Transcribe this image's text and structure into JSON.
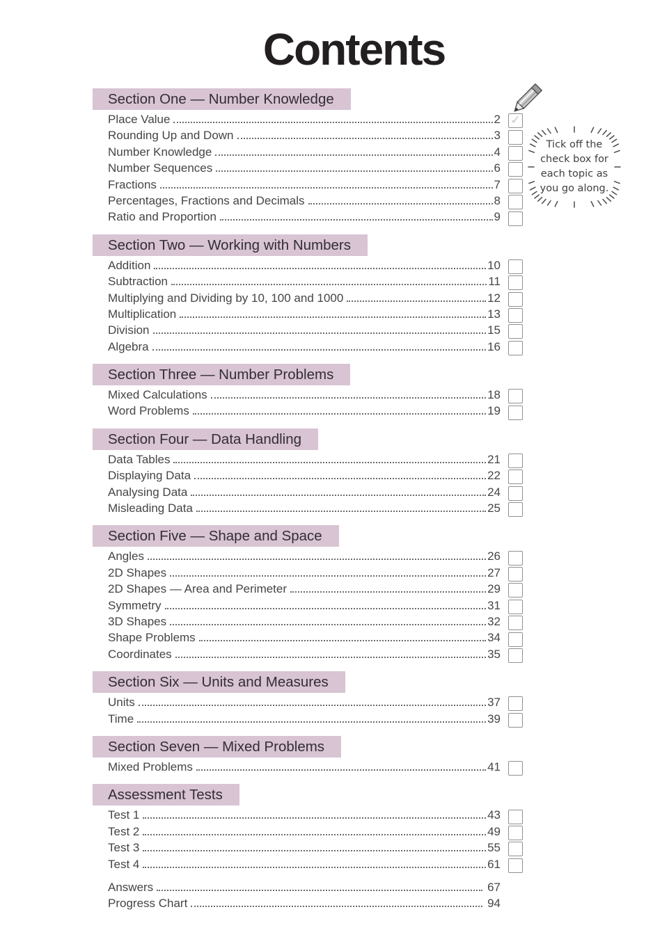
{
  "title": "Contents",
  "note": {
    "text": "Tick off the\ncheck box for\neach topic as\nyou go along."
  },
  "icons": {
    "pencil": "pencil-icon",
    "checkmark_glyph": "✓",
    "scribble_border": "scribble-burst-border-icon"
  },
  "colors": {
    "section_header_bg": "#d8c4d2",
    "section_header_text": "#332d36",
    "body_text": "#454545",
    "title_text": "#231f20",
    "checkbox_border": "#909090",
    "tick": "#c6c6c6"
  },
  "sections": [
    {
      "heading": "Section One — Number Knowledge",
      "items": [
        {
          "label": "Place Value",
          "page": "2",
          "checked": true
        },
        {
          "label": "Rounding Up and Down",
          "page": "3",
          "checked": false
        },
        {
          "label": "Number Knowledge",
          "page": "4",
          "checked": false
        },
        {
          "label": "Number Sequences",
          "page": "6",
          "checked": false
        },
        {
          "label": "Fractions",
          "page": "7",
          "checked": false
        },
        {
          "label": "Percentages, Fractions and Decimals",
          "page": "8",
          "checked": false
        },
        {
          "label": "Ratio and Proportion",
          "page": "9",
          "checked": false
        }
      ]
    },
    {
      "heading": "Section Two — Working with Numbers",
      "items": [
        {
          "label": "Addition",
          "page": "10",
          "checked": false
        },
        {
          "label": "Subtraction",
          "page": "11",
          "checked": false
        },
        {
          "label": "Multiplying and Dividing by 10, 100 and 1000",
          "page": "12",
          "checked": false
        },
        {
          "label": "Multiplication",
          "page": "13",
          "checked": false
        },
        {
          "label": "Division",
          "page": "15",
          "checked": false
        },
        {
          "label": "Algebra",
          "page": "16",
          "checked": false
        }
      ]
    },
    {
      "heading": "Section Three — Number Problems",
      "items": [
        {
          "label": "Mixed Calculations",
          "page": "18",
          "checked": false
        },
        {
          "label": "Word Problems",
          "page": "19",
          "checked": false
        }
      ]
    },
    {
      "heading": "Section Four — Data Handling",
      "items": [
        {
          "label": "Data Tables",
          "page": "21",
          "checked": false
        },
        {
          "label": "Displaying Data",
          "page": "22",
          "checked": false
        },
        {
          "label": "Analysing Data",
          "page": "24",
          "checked": false
        },
        {
          "label": "Misleading Data",
          "page": "25",
          "checked": false
        }
      ]
    },
    {
      "heading": "Section Five — Shape and Space",
      "items": [
        {
          "label": "Angles",
          "page": "26",
          "checked": false
        },
        {
          "label": "2D Shapes",
          "page": "27",
          "checked": false
        },
        {
          "label": "2D Shapes — Area and Perimeter",
          "page": "29",
          "checked": false
        },
        {
          "label": "Symmetry",
          "page": "31",
          "checked": false
        },
        {
          "label": "3D Shapes",
          "page": "32",
          "checked": false
        },
        {
          "label": "Shape Problems",
          "page": "34",
          "checked": false
        },
        {
          "label": "Coordinates",
          "page": "35",
          "checked": false
        }
      ]
    },
    {
      "heading": "Section Six — Units and Measures",
      "items": [
        {
          "label": "Units",
          "page": "37",
          "checked": false
        },
        {
          "label": "Time",
          "page": "39",
          "checked": false
        }
      ]
    },
    {
      "heading": "Section Seven — Mixed Problems",
      "items": [
        {
          "label": "Mixed Problems",
          "page": "41",
          "checked": false
        }
      ]
    },
    {
      "heading": "Assessment Tests",
      "items": [
        {
          "label": "Test 1",
          "page": "43",
          "checked": false
        },
        {
          "label": "Test 2",
          "page": "49",
          "checked": false
        },
        {
          "label": "Test 3",
          "page": "55",
          "checked": false
        },
        {
          "label": "Test 4",
          "page": "61",
          "checked": false
        }
      ]
    }
  ],
  "footer_items": [
    {
      "label": "Answers",
      "page": "67"
    },
    {
      "label": "Progress Chart",
      "page": "94"
    }
  ]
}
